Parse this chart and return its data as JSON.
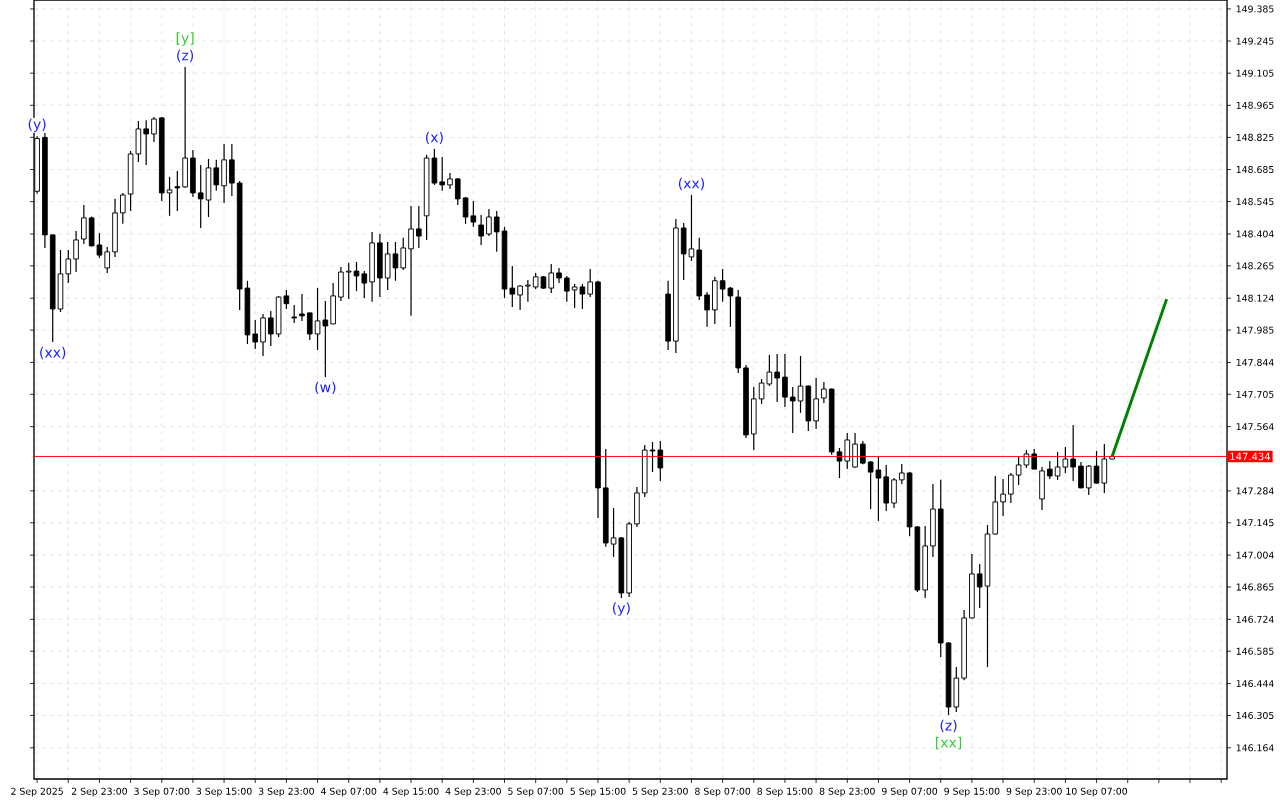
{
  "chart_data": {
    "type": "candlestick",
    "categories": [
      "2 Sep 2025",
      null,
      null,
      null,
      null,
      null,
      null,
      null,
      "2 Sep 23:00",
      null,
      null,
      null,
      null,
      null,
      null,
      null,
      "3 Sep 07:00",
      null,
      null,
      null,
      null,
      null,
      null,
      null,
      "3 Sep 15:00",
      null,
      null,
      null,
      null,
      null,
      null,
      null,
      "3 Sep 23:00",
      null,
      null,
      null,
      null,
      null,
      null,
      null,
      "4 Sep 07:00",
      null,
      null,
      null,
      null,
      null,
      null,
      null,
      "4 Sep 15:00",
      null,
      null,
      null,
      null,
      null,
      null,
      null,
      "4 Sep 23:00",
      null,
      null,
      null,
      null,
      null,
      null,
      null,
      "5 Sep 07:00",
      null,
      null,
      null,
      null,
      null,
      null,
      null,
      "5 Sep 15:00",
      null,
      null,
      null,
      null,
      null,
      null,
      null,
      "5 Sep 23:00",
      null,
      null,
      null,
      null,
      null,
      null,
      null,
      "8 Sep 07:00",
      null,
      null,
      null,
      null,
      null,
      null,
      null,
      "8 Sep 15:00",
      null,
      null,
      null,
      null,
      null,
      null,
      null,
      "8 Sep 23:00",
      null,
      null,
      null,
      null,
      null,
      null,
      null,
      "9 Sep 07:00",
      null,
      null,
      null,
      null,
      null,
      null,
      null,
      "9 Sep 15:00",
      null,
      null,
      null,
      null,
      null,
      null,
      null,
      "9 Sep 23:00",
      null,
      null,
      null,
      null,
      null,
      null,
      null,
      "10 Sep 07:00",
      null,
      null,
      null,
      null,
      null,
      null,
      null,
      null,
      null,
      null,
      null,
      null,
      null,
      null,
      null,
      null
    ],
    "ohlc": [
      [
        148.59,
        148.83,
        148.58,
        148.82
      ],
      [
        148.825,
        148.844,
        148.343,
        148.4
      ],
      [
        148.4,
        148.4,
        147.933,
        148.077
      ],
      [
        148.077,
        148.334,
        148.064,
        148.23
      ],
      [
        148.23,
        148.334,
        148.19,
        148.295
      ],
      [
        148.295,
        148.417,
        148.238,
        148.378
      ],
      [
        148.382,
        148.53,
        148.36,
        148.474
      ],
      [
        148.474,
        148.48,
        148.35,
        148.352
      ],
      [
        148.356,
        148.408,
        148.3,
        148.312
      ],
      [
        148.256,
        148.347,
        148.234,
        148.326
      ],
      [
        148.326,
        148.557,
        148.304,
        148.496
      ],
      [
        148.496,
        148.583,
        148.448,
        148.574
      ],
      [
        148.578,
        148.766,
        148.504,
        148.753
      ],
      [
        148.753,
        148.897,
        148.718,
        148.862
      ],
      [
        148.862,
        148.9,
        148.705,
        148.84
      ],
      [
        148.84,
        148.914,
        148.805,
        148.905
      ],
      [
        148.91,
        148.914,
        148.548,
        148.583
      ],
      [
        148.583,
        148.653,
        148.483,
        148.596
      ],
      [
        148.61,
        148.679,
        148.504,
        148.605
      ],
      [
        148.609,
        149.132,
        148.605,
        148.735
      ],
      [
        148.735,
        148.77,
        148.565,
        148.583
      ],
      [
        148.583,
        148.705,
        148.43,
        148.557
      ],
      [
        148.552,
        148.731,
        148.478,
        148.692
      ],
      [
        148.692,
        148.727,
        148.592,
        148.618
      ],
      [
        148.614,
        148.796,
        148.539,
        148.727
      ],
      [
        148.727,
        148.796,
        148.57,
        148.626
      ],
      [
        148.626,
        148.635,
        148.073,
        148.164
      ],
      [
        148.168,
        148.2,
        147.924,
        147.964
      ],
      [
        147.968,
        148.029,
        147.903,
        147.933
      ],
      [
        147.933,
        148.055,
        147.872,
        148.038
      ],
      [
        148.038,
        148.068,
        147.916,
        147.968
      ],
      [
        147.968,
        148.134,
        147.955,
        148.129
      ],
      [
        148.134,
        148.16,
        148.077,
        148.1
      ],
      [
        148.042,
        148.094,
        148.016,
        148.038
      ],
      [
        148.055,
        148.142,
        148.025,
        148.047
      ],
      [
        148.06,
        148.06,
        147.942,
        147.968
      ],
      [
        147.968,
        148.169,
        147.898,
        148.025
      ],
      [
        148.029,
        148.112,
        147.781,
        148.003
      ],
      [
        148.012,
        148.19,
        148.01,
        148.134
      ],
      [
        148.129,
        148.26,
        148.112,
        148.238
      ],
      [
        148.238,
        148.278,
        148.121,
        148.242
      ],
      [
        148.242,
        148.282,
        148.155,
        148.221
      ],
      [
        148.23,
        148.243,
        148.125,
        148.19
      ],
      [
        148.195,
        148.413,
        148.108,
        148.365
      ],
      [
        148.365,
        148.404,
        148.129,
        148.212
      ],
      [
        148.212,
        148.369,
        148.16,
        148.317
      ],
      [
        148.317,
        148.369,
        148.2,
        148.256
      ],
      [
        148.256,
        148.387,
        148.247,
        148.343
      ],
      [
        148.339,
        148.526,
        148.047,
        148.426
      ],
      [
        148.426,
        148.526,
        148.343,
        148.395
      ],
      [
        148.483,
        148.749,
        148.378,
        148.735
      ],
      [
        148.735,
        148.775,
        148.618,
        148.626
      ],
      [
        148.631,
        148.74,
        148.592,
        148.618
      ],
      [
        148.618,
        148.67,
        148.6,
        148.644
      ],
      [
        148.644,
        148.648,
        148.53,
        148.557
      ],
      [
        148.561,
        148.565,
        148.448,
        148.478
      ],
      [
        148.483,
        148.548,
        148.435,
        148.456
      ],
      [
        148.443,
        148.487,
        148.356,
        148.395
      ],
      [
        148.404,
        148.513,
        148.395,
        148.478
      ],
      [
        148.478,
        148.504,
        148.326,
        148.413
      ],
      [
        148.417,
        148.435,
        148.125,
        148.164
      ],
      [
        148.168,
        148.264,
        148.086,
        148.142
      ],
      [
        148.138,
        148.18,
        148.073,
        148.177
      ],
      [
        148.177,
        148.203,
        148.108,
        148.181
      ],
      [
        148.173,
        148.234,
        148.164,
        148.217
      ],
      [
        148.217,
        148.22,
        148.165,
        148.168
      ],
      [
        148.168,
        148.273,
        148.147,
        148.234
      ],
      [
        148.234,
        148.256,
        148.19,
        148.212
      ],
      [
        148.212,
        148.221,
        148.108,
        148.155
      ],
      [
        148.16,
        148.186,
        148.081,
        148.173
      ],
      [
        148.173,
        148.186,
        148.077,
        148.142
      ],
      [
        148.142,
        148.251,
        148.129,
        148.195
      ],
      [
        148.195,
        148.2,
        147.166,
        147.297
      ],
      [
        147.297,
        147.467,
        147.04,
        147.057
      ],
      [
        147.052,
        147.209,
        146.996,
        147.079
      ],
      [
        147.079,
        147.083,
        146.817,
        146.839
      ],
      [
        146.839,
        147.148,
        146.821,
        147.14
      ],
      [
        147.14,
        147.301,
        147.127,
        147.275
      ],
      [
        147.275,
        147.484,
        147.257,
        147.462
      ],
      [
        147.462,
        147.497,
        147.366,
        147.458
      ],
      [
        147.462,
        147.501,
        147.327,
        147.384
      ],
      [
        148.142,
        148.2,
        147.898,
        147.937
      ],
      [
        147.937,
        148.469,
        147.885,
        148.43
      ],
      [
        148.43,
        148.452,
        148.203,
        148.317
      ],
      [
        148.304,
        148.574,
        148.286,
        148.339
      ],
      [
        148.334,
        148.387,
        148.116,
        148.134
      ],
      [
        148.138,
        148.151,
        147.999,
        148.073
      ],
      [
        148.073,
        148.217,
        148.012,
        148.2
      ],
      [
        148.2,
        148.251,
        148.108,
        148.164
      ],
      [
        148.168,
        148.173,
        147.999,
        148.134
      ],
      [
        148.129,
        148.16,
        147.798,
        147.82
      ],
      [
        147.82,
        147.833,
        147.515,
        147.528
      ],
      [
        147.532,
        147.737,
        147.462,
        147.685
      ],
      [
        147.685,
        147.772,
        147.663,
        147.754
      ],
      [
        147.75,
        147.876,
        147.741,
        147.802
      ],
      [
        147.802,
        147.881,
        147.672,
        147.776
      ],
      [
        147.78,
        147.881,
        147.65,
        147.693
      ],
      [
        147.693,
        147.737,
        147.536,
        147.676
      ],
      [
        147.676,
        147.872,
        147.624,
        147.741
      ],
      [
        147.741,
        147.745,
        147.545,
        147.589
      ],
      [
        147.589,
        147.776,
        147.554,
        147.685
      ],
      [
        147.689,
        147.759,
        147.667,
        147.728
      ],
      [
        147.728,
        147.73,
        147.441,
        147.454
      ],
      [
        147.454,
        147.471,
        147.34,
        147.414
      ],
      [
        147.414,
        147.536,
        147.379,
        147.506
      ],
      [
        147.388,
        147.536,
        147.385,
        147.488
      ],
      [
        147.488,
        147.501,
        147.4,
        147.405
      ],
      [
        147.41,
        147.414,
        147.205,
        147.366
      ],
      [
        147.375,
        147.432,
        147.153,
        147.34
      ],
      [
        147.345,
        147.397,
        147.196,
        147.231
      ],
      [
        147.231,
        147.34,
        147.209,
        147.332
      ],
      [
        147.332,
        147.401,
        147.314,
        147.362
      ],
      [
        147.362,
        147.366,
        147.087,
        147.127
      ],
      [
        147.127,
        147.13,
        146.843,
        146.852
      ],
      [
        146.852,
        147.131,
        146.817,
        147.044
      ],
      [
        147.044,
        147.314,
        146.996,
        147.205
      ],
      [
        147.205,
        147.332,
        146.56,
        146.621
      ],
      [
        146.621,
        146.625,
        146.307,
        146.342
      ],
      [
        146.342,
        146.516,
        146.32,
        146.468
      ],
      [
        146.468,
        146.765,
        146.459,
        146.73
      ],
      [
        146.73,
        147.009,
        146.728,
        146.922
      ],
      [
        146.922,
        146.965,
        146.773,
        146.865
      ],
      [
        146.869,
        147.135,
        146.516,
        147.096
      ],
      [
        147.096,
        147.349,
        147.094,
        147.236
      ],
      [
        147.236,
        147.336,
        147.175,
        147.27
      ],
      [
        147.27,
        147.362,
        147.231,
        147.353
      ],
      [
        147.353,
        147.432,
        147.31,
        147.397
      ],
      [
        147.397,
        147.462,
        147.384,
        147.445
      ],
      [
        147.445,
        147.467,
        147.379,
        147.379
      ],
      [
        147.249,
        147.388,
        147.201,
        147.371
      ],
      [
        147.379,
        147.414,
        147.336,
        147.349
      ],
      [
        147.349,
        147.454,
        147.332,
        147.388
      ],
      [
        147.388,
        147.475,
        147.362,
        147.423
      ],
      [
        147.423,
        147.571,
        147.327,
        147.388
      ],
      [
        147.392,
        147.41,
        147.295,
        147.297
      ],
      [
        147.297,
        147.397,
        147.266,
        147.392
      ],
      [
        147.392,
        147.458,
        147.316,
        147.318
      ],
      [
        147.318,
        147.488,
        147.275,
        147.423
      ],
      [
        147.423,
        147.436,
        147.422,
        147.434
      ],
      null,
      null,
      null,
      null,
      null,
      null,
      null,
      null,
      null,
      null,
      null,
      null,
      null,
      null
    ],
    "series": [
      {
        "type": "line",
        "color": "#008000",
        "values": [
          null,
          null,
          null,
          null,
          null,
          null,
          null,
          null,
          null,
          null,
          null,
          null,
          null,
          null,
          null,
          null,
          null,
          null,
          null,
          null,
          null,
          null,
          null,
          null,
          null,
          null,
          null,
          null,
          null,
          null,
          null,
          null,
          null,
          null,
          null,
          null,
          null,
          null,
          null,
          null,
          null,
          null,
          null,
          null,
          null,
          null,
          null,
          null,
          null,
          null,
          null,
          null,
          null,
          null,
          null,
          null,
          null,
          null,
          null,
          null,
          null,
          null,
          null,
          null,
          null,
          null,
          null,
          null,
          null,
          null,
          null,
          null,
          null,
          null,
          null,
          null,
          null,
          null,
          null,
          null,
          null,
          null,
          null,
          null,
          null,
          null,
          null,
          null,
          null,
          null,
          null,
          null,
          null,
          null,
          null,
          null,
          null,
          null,
          null,
          null,
          null,
          null,
          null,
          null,
          null,
          null,
          null,
          null,
          null,
          null,
          null,
          null,
          null,
          null,
          null,
          null,
          null,
          null,
          null,
          null,
          null,
          null,
          null,
          null,
          null,
          null,
          null,
          null,
          null,
          null,
          null,
          null,
          null,
          null,
          null,
          null,
          null,
          null,
          147.434,
          null,
          null,
          null,
          null,
          null,
          null,
          148.12,
          null,
          null,
          null,
          null,
          null,
          null,
          null
        ]
      }
    ],
    "ylim": [
      146.028,
      149.424
    ],
    "yticks": [
      146.164,
      146.305,
      146.444,
      146.585,
      146.724,
      146.865,
      147.004,
      147.145,
      147.284,
      147.564,
      147.705,
      147.844,
      147.985,
      148.124,
      148.265,
      148.404,
      148.545,
      148.685,
      148.825,
      148.965,
      149.105,
      149.245,
      149.385
    ],
    "grid": true,
    "ref_lines": [
      {
        "axis": "y",
        "value": 147.434,
        "label": "147.434",
        "color": "#ff0000"
      }
    ],
    "annotations": [
      {
        "text": "(y)",
        "y": 148.83
      },
      {
        "text": "(xx)",
        "y": 147.933
      },
      {
        "text": "(z)",
        "y": 149.132
      },
      {
        "text": "[y]",
        "y": 149.132
      },
      {
        "text": "(w)",
        "y": 147.781
      },
      {
        "text": "(x)",
        "y": 148.775
      },
      {
        "text": "(y)",
        "y": 146.817
      },
      {
        "text": "(xx)",
        "y": 148.574
      },
      {
        "text": "(z)",
        "y": 146.307
      },
      {
        "text": "[xx]",
        "y": 146.307
      }
    ]
  }
}
